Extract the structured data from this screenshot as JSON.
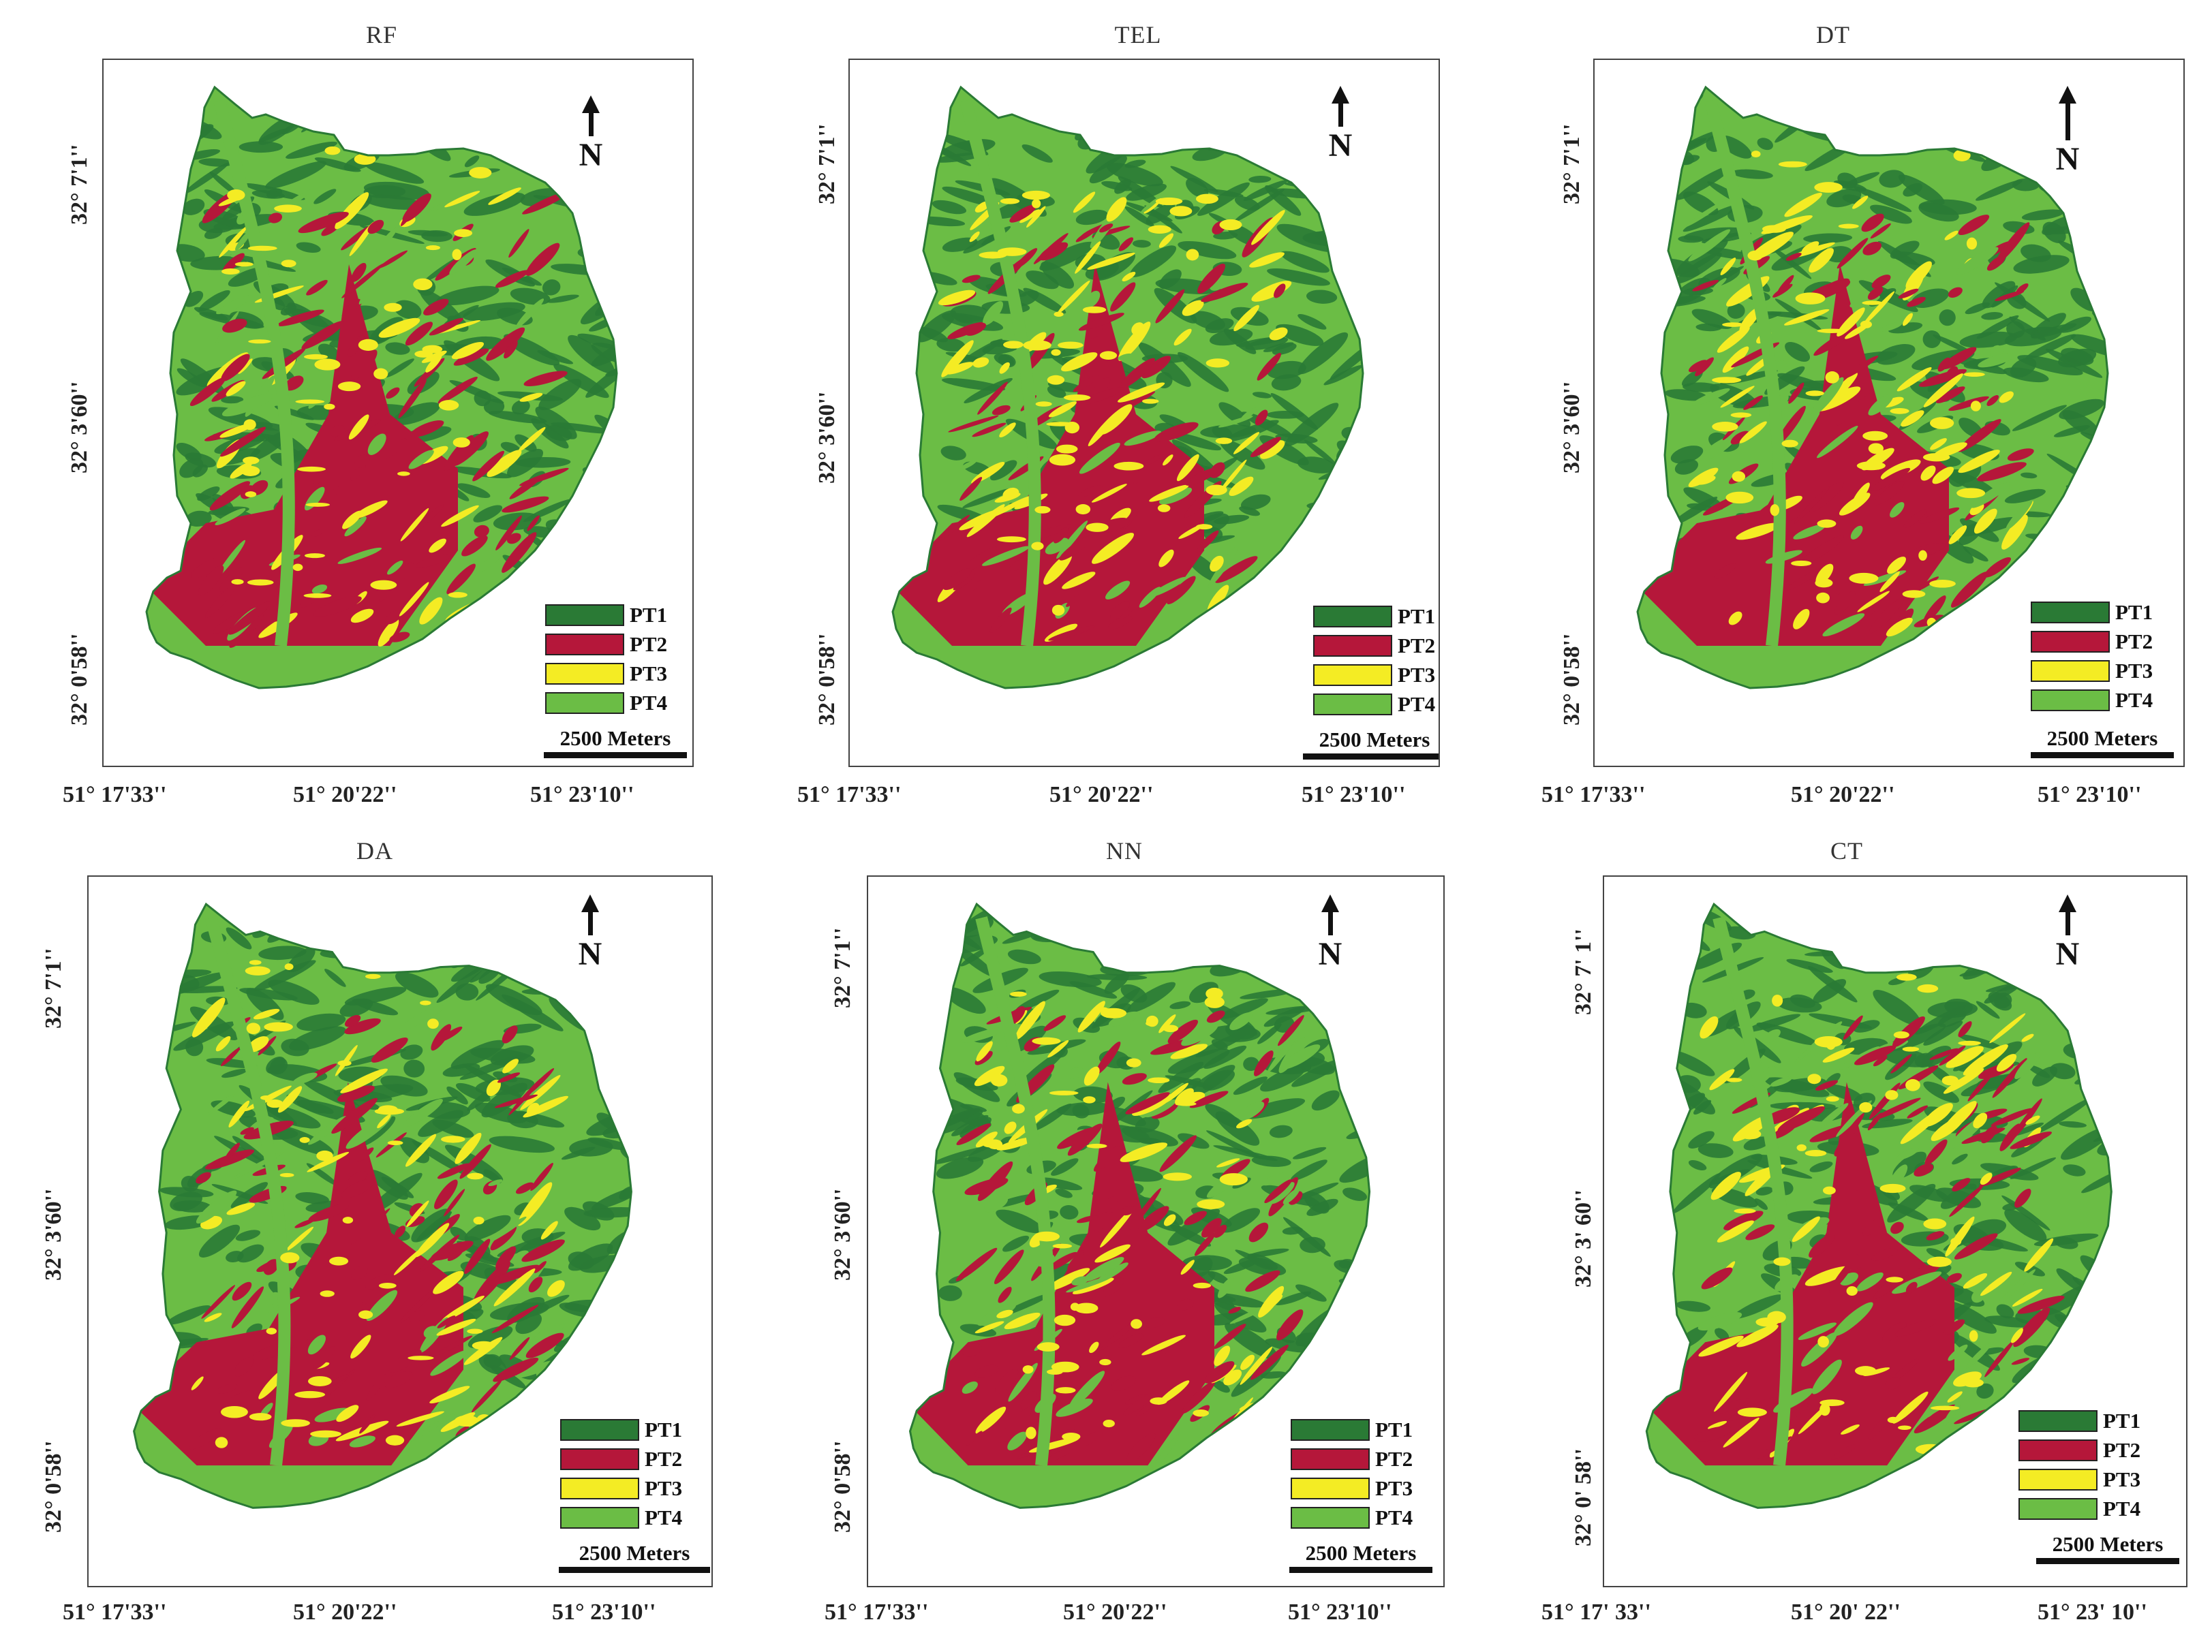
{
  "colors": {
    "PT1": "#2a7a35",
    "PT2": "#b5173a",
    "PT3": "#f4ec24",
    "PT4": "#6bbd45"
  },
  "legend": [
    {
      "label": "PT1",
      "color": "#2a7a35"
    },
    {
      "label": "PT2",
      "color": "#b5173a"
    },
    {
      "label": "PT3",
      "color": "#f4ec24"
    },
    {
      "label": "PT4",
      "color": "#6bbd45"
    }
  ],
  "north_label": "N",
  "scale_label": "2500 Meters",
  "panels": [
    {
      "title": "RF",
      "y_ticks": [
        "32° 7'1''",
        "32° 3'60''",
        "32° 0'58''"
      ],
      "x_ticks": [
        "51° 17'33''",
        "51° 20'22''",
        "51° 23'10''"
      ]
    },
    {
      "title": "TEL",
      "y_ticks": [
        "32° 7'1''",
        "32° 3'60''",
        "32° 0'58''"
      ],
      "x_ticks": [
        "51° 17'33''",
        "51° 20'22''",
        "51° 23'10''"
      ]
    },
    {
      "title": "DT",
      "y_ticks": [
        "32° 7'1''",
        "32° 3'60''",
        "32° 0'58''"
      ],
      "x_ticks": [
        "51° 17'33''",
        "51° 20'22''",
        "51° 23'10''"
      ]
    },
    {
      "title": "DA",
      "y_ticks": [
        "32° 7'1''",
        "32° 3'60''",
        "32° 0'58''"
      ],
      "x_ticks": [
        "51° 17'33''",
        "51° 20'22''",
        "51° 23'10''"
      ]
    },
    {
      "title": "NN",
      "y_ticks": [
        "32° 7'1''",
        "32° 3'60''",
        "32° 0'58''"
      ],
      "x_ticks": [
        "51° 17'33''",
        "51° 20'22''",
        "51° 23'10''"
      ]
    },
    {
      "title": "CT",
      "y_ticks": [
        "32° 7' 1''",
        "32° 3' 60''",
        "32° 0' 58''"
      ],
      "x_ticks": [
        "51° 17' 33''",
        "51° 20' 22''",
        "51° 23' 10''"
      ]
    }
  ]
}
